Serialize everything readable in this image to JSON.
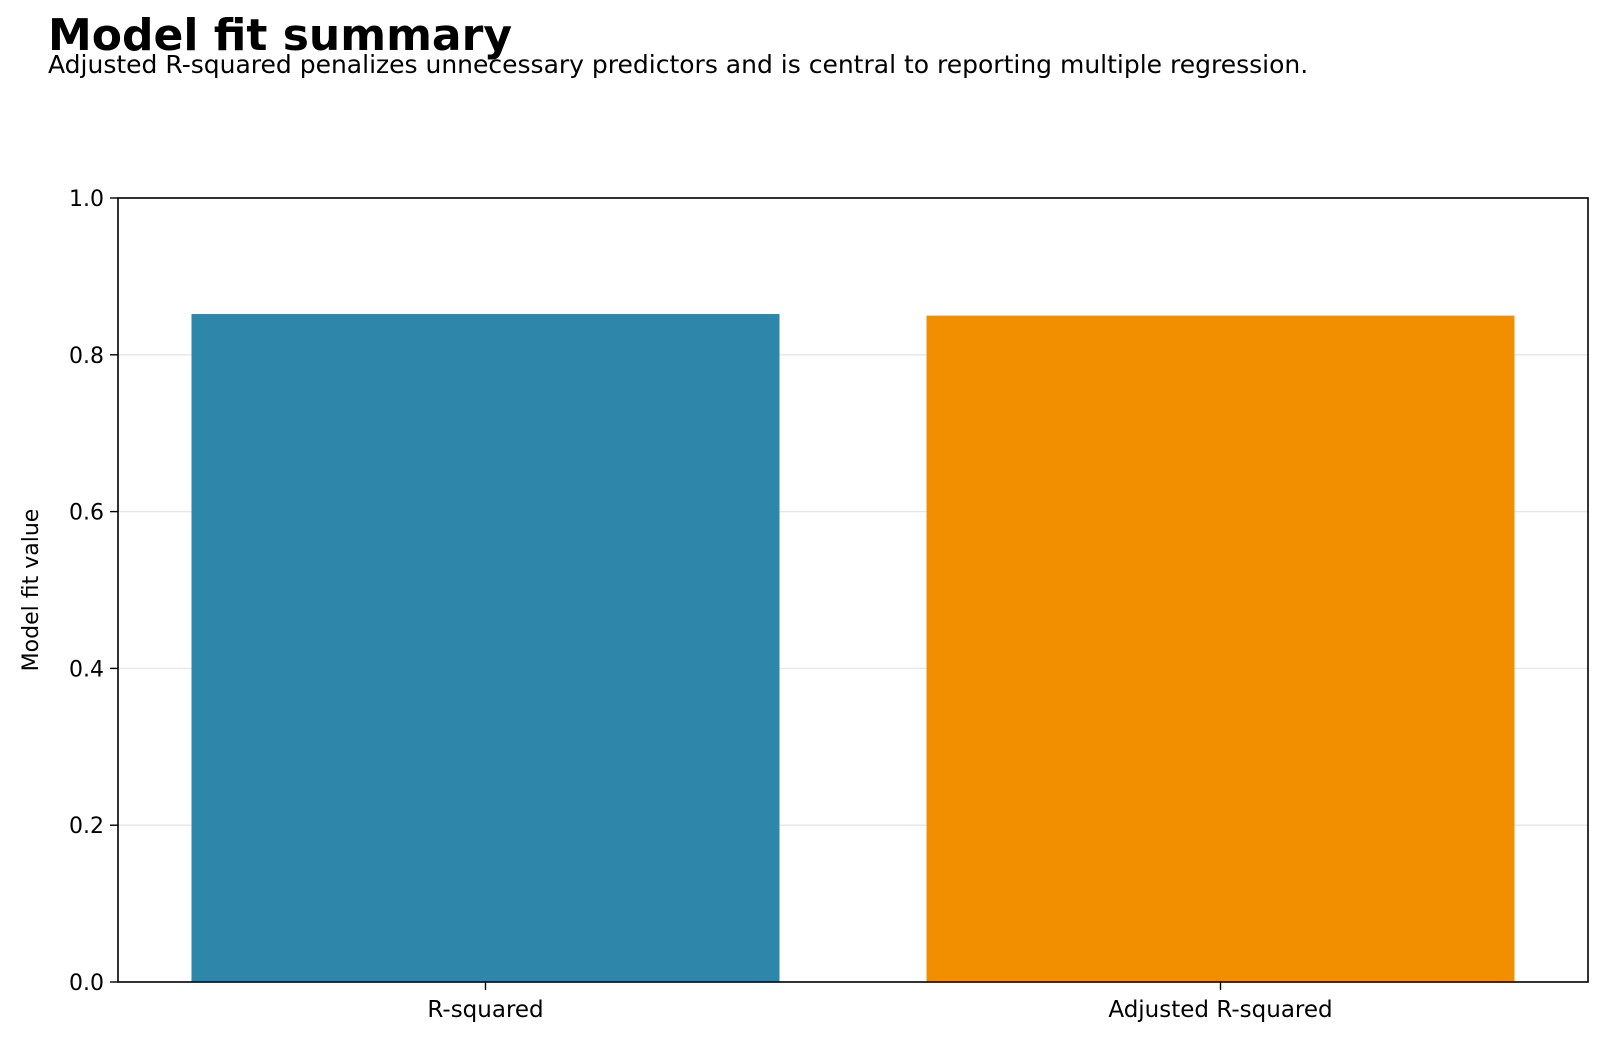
{
  "chart_data": {
    "type": "bar",
    "title": "Model fit summary",
    "subtitle": "Adjusted R-squared penalizes unnecessary predictors and is central to reporting multiple regression.",
    "xlabel": "",
    "ylabel": "Model fit value",
    "categories": [
      "R-squared",
      "Adjusted R-squared"
    ],
    "values": [
      0.852,
      0.85
    ],
    "colors": [
      "#2e86ab",
      "#f18f01"
    ],
    "ylim": [
      0,
      1.0
    ],
    "yticks": [
      "0.0",
      "0.2",
      "0.4",
      "0.6",
      "0.8",
      "1.0"
    ],
    "grid": "horizontal",
    "gridColor": "#e6e6e6"
  }
}
